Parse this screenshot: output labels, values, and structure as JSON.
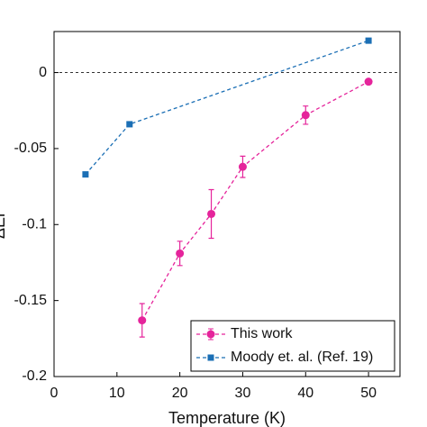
{
  "chart_data": {
    "type": "line",
    "xlabel": "Temperature (K)",
    "ylabel": "ΔEr",
    "xlim": [
      0,
      55
    ],
    "xticks": [
      0,
      10,
      20,
      30,
      40,
      50
    ],
    "ylim": [
      -0.2,
      0.027
    ],
    "yticks": [
      {
        "value": 0,
        "label": "0"
      },
      {
        "value": -0.05,
        "label": "-0.05"
      },
      {
        "value": -0.1,
        "label": "-0.1"
      },
      {
        "value": -0.15,
        "label": "-0.15"
      },
      {
        "value": -0.2,
        "label": "-0.2"
      }
    ],
    "legend": "lower right",
    "series": [
      {
        "name": "This work",
        "color": "#e5249b",
        "marker": "circle",
        "x": [
          14,
          20,
          25,
          30,
          40,
          50
        ],
        "values": [
          -0.163,
          -0.119,
          -0.093,
          -0.062,
          -0.028,
          -0.006
        ],
        "errors": [
          0.011,
          0.008,
          0.016,
          0.007,
          0.006,
          0.001
        ]
      },
      {
        "name": "Moody et. al. (Ref. 19)",
        "color": "#1b6fb5",
        "marker": "square",
        "x": [
          5,
          12,
          50
        ],
        "values": [
          -0.067,
          -0.034,
          0.021
        ]
      }
    ]
  }
}
